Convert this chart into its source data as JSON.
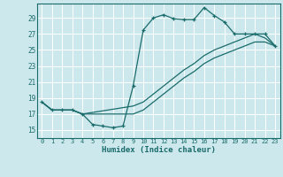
{
  "xlabel": "Humidex (Indice chaleur)",
  "bg_color": "#cce8ec",
  "line_color": "#1a6b6b",
  "grid_color": "#ffffff",
  "xlim": [
    -0.5,
    23.5
  ],
  "ylim": [
    14.0,
    30.8
  ],
  "xticks": [
    0,
    1,
    2,
    3,
    4,
    5,
    6,
    7,
    8,
    9,
    10,
    11,
    12,
    13,
    14,
    15,
    16,
    17,
    18,
    19,
    20,
    21,
    22,
    23
  ],
  "yticks": [
    15,
    17,
    19,
    21,
    23,
    25,
    27,
    29
  ],
  "curve1_x": [
    0,
    1,
    2,
    3,
    4,
    5,
    6,
    7,
    8,
    9,
    10,
    11,
    12,
    13,
    14,
    15,
    16,
    17,
    18,
    19,
    20,
    21,
    22,
    23
  ],
  "curve1_y": [
    18.5,
    17.5,
    17.5,
    17.5,
    17.0,
    15.7,
    15.5,
    15.3,
    15.5,
    20.5,
    27.5,
    29.0,
    29.4,
    28.9,
    28.8,
    28.8,
    30.3,
    29.3,
    28.5,
    27.0,
    27.0,
    27.0,
    27.0,
    25.5
  ],
  "curve2_x": [
    0,
    1,
    2,
    3,
    4,
    9,
    10,
    11,
    12,
    13,
    14,
    15,
    16,
    17,
    18,
    19,
    20,
    21,
    22,
    23
  ],
  "curve2_y": [
    18.5,
    17.5,
    17.5,
    17.5,
    17.0,
    18.0,
    18.5,
    19.5,
    20.5,
    21.5,
    22.5,
    23.3,
    24.3,
    25.0,
    25.5,
    26.0,
    26.5,
    27.0,
    26.5,
    25.5
  ],
  "curve3_x": [
    0,
    1,
    2,
    3,
    4,
    9,
    10,
    11,
    12,
    13,
    14,
    15,
    16,
    17,
    18,
    19,
    20,
    21,
    22,
    23
  ],
  "curve3_y": [
    18.5,
    17.5,
    17.5,
    17.5,
    17.0,
    17.0,
    17.5,
    18.5,
    19.5,
    20.5,
    21.5,
    22.3,
    23.3,
    24.0,
    24.5,
    25.0,
    25.5,
    26.0,
    26.0,
    25.5
  ]
}
